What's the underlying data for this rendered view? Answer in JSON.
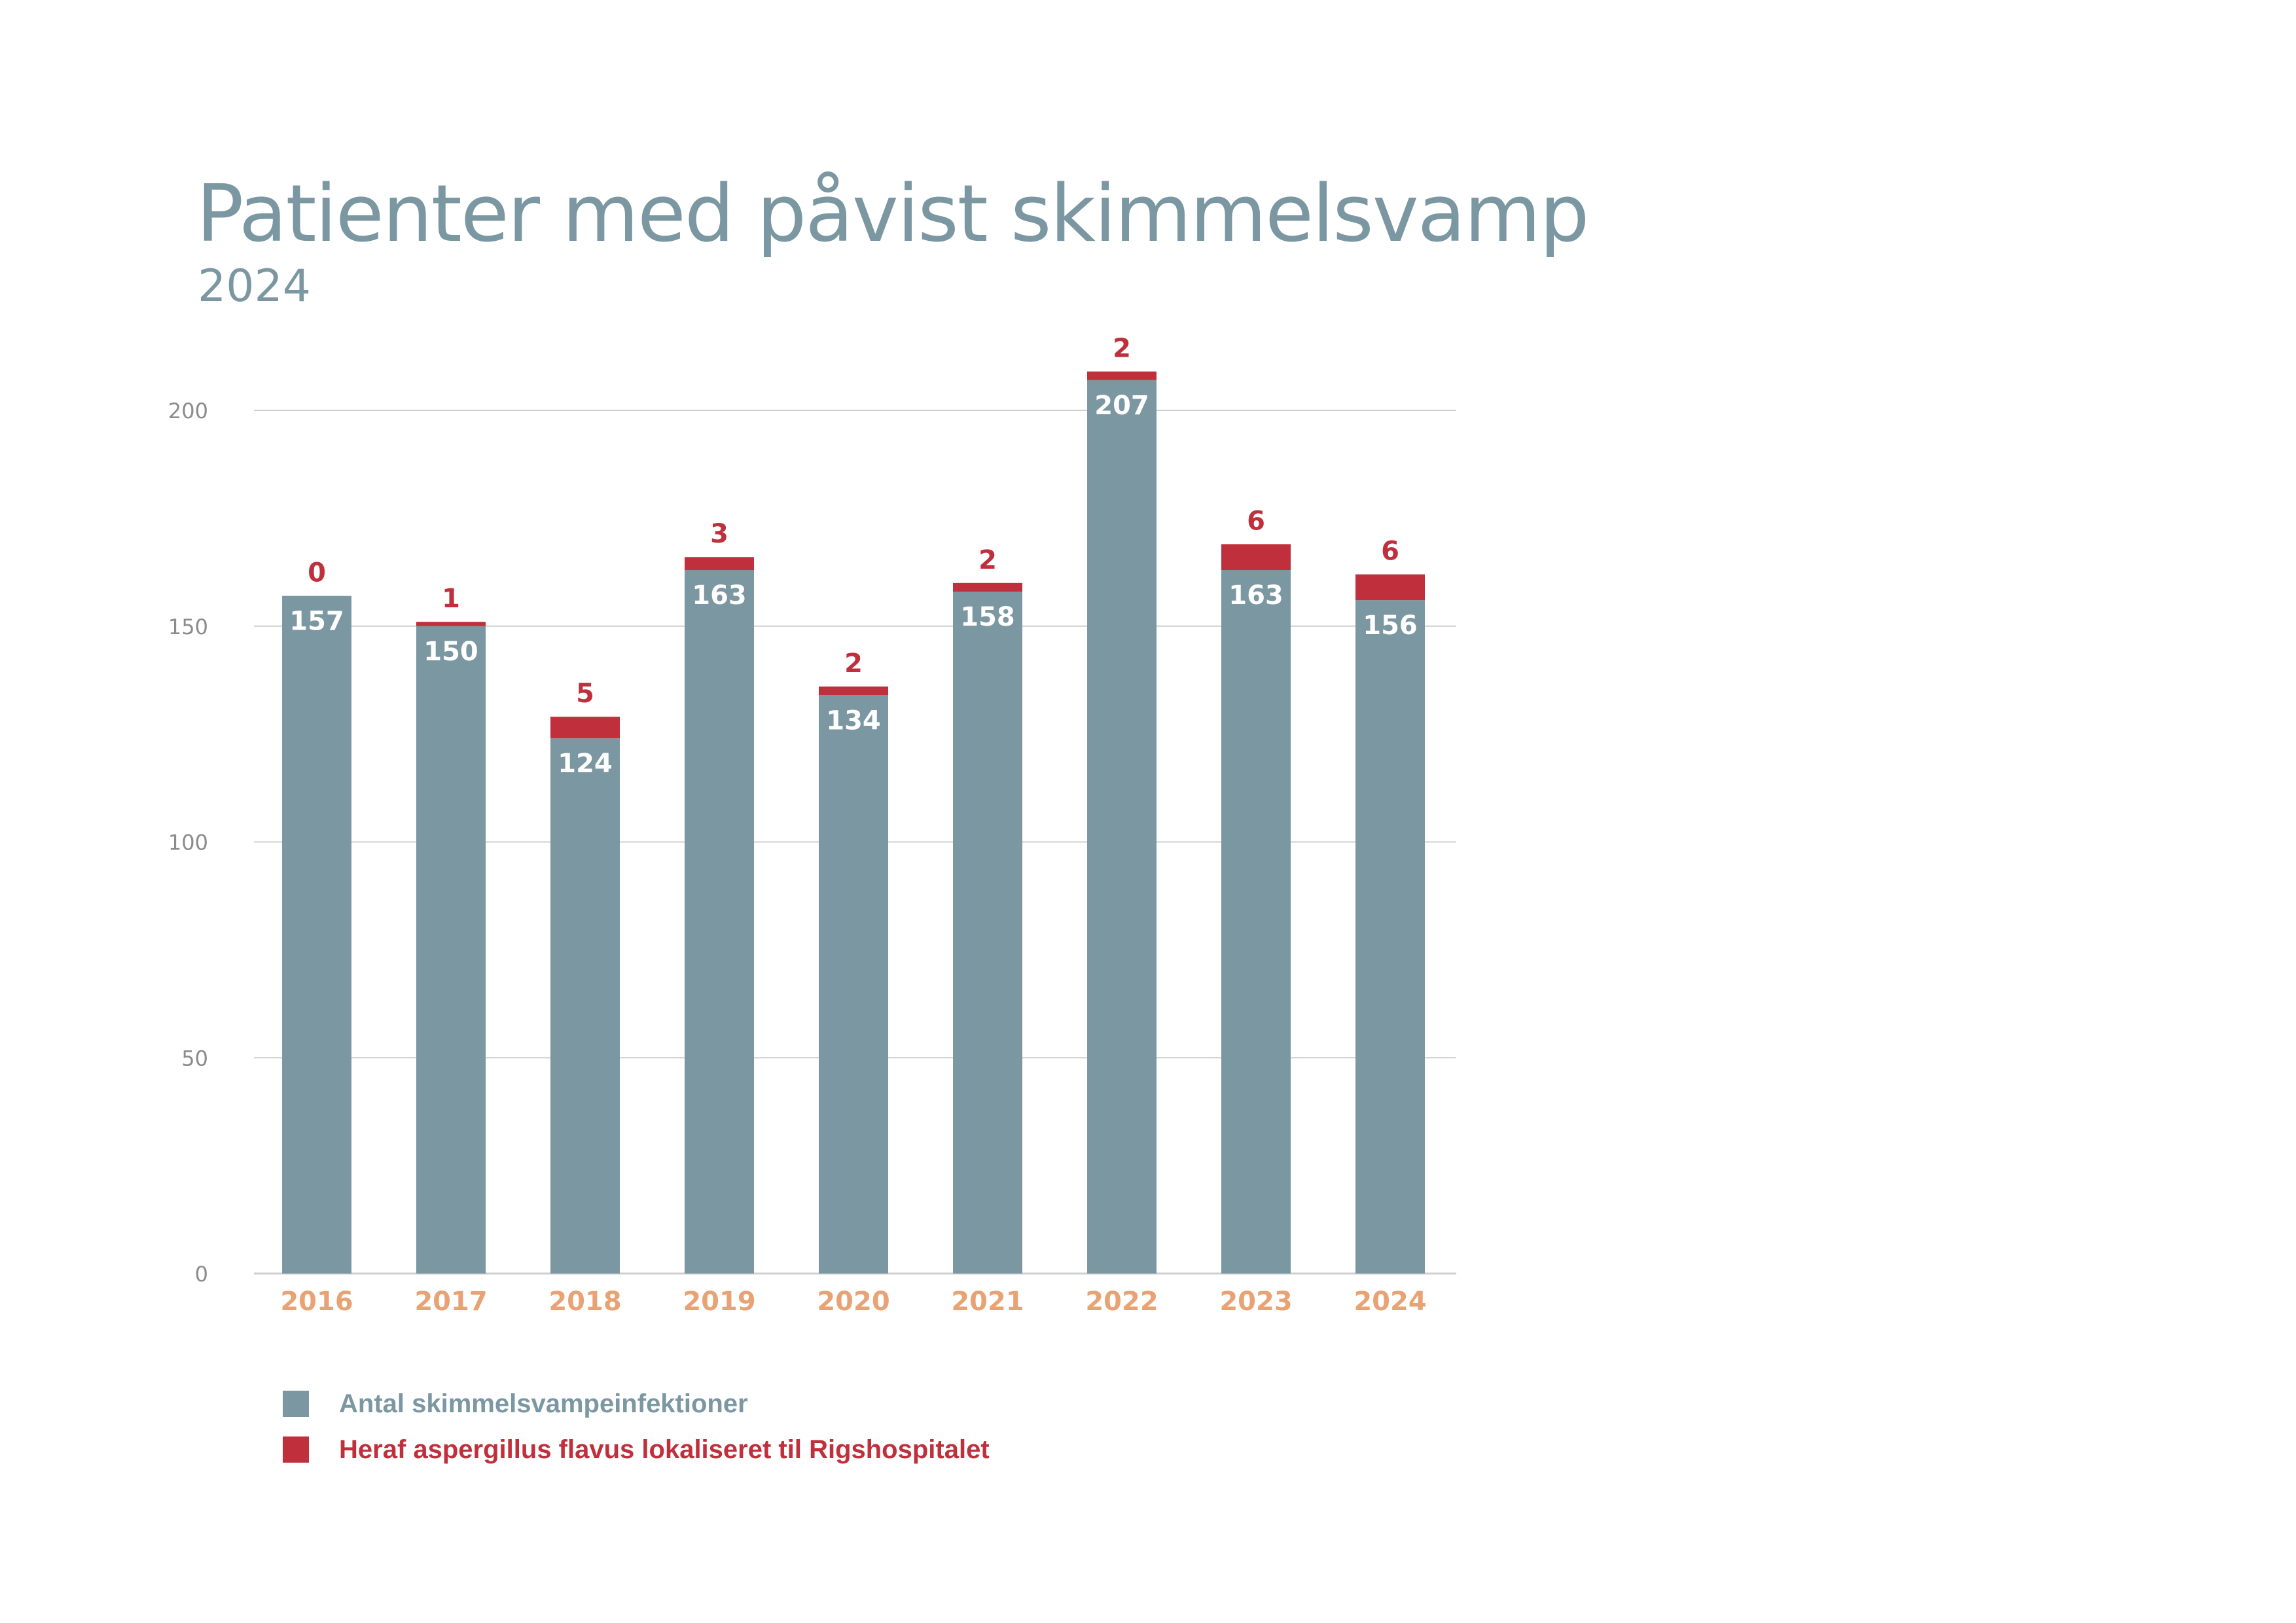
{
  "chart_data": {
    "type": "bar",
    "stacked": true,
    "title": "Patienter med påvist skimmelsvamp",
    "subtitle": "2024",
    "xlabel": "",
    "ylabel": "",
    "ylim": [
      0,
      200
    ],
    "yticks": [
      0,
      50,
      100,
      150,
      200
    ],
    "grid": true,
    "legend_position": "bottom-left",
    "categories": [
      "2016",
      "2017",
      "2018",
      "2019",
      "2020",
      "2021",
      "2022",
      "2023",
      "2024"
    ],
    "series": [
      {
        "name": "Antal skimmelsvampeinfektioner",
        "color": "#7b97a2",
        "values": [
          157,
          150,
          124,
          163,
          134,
          158,
          207,
          163,
          156
        ]
      },
      {
        "name": "Heraf aspergillus flavus lokaliseret til Rigshospitalet",
        "color": "#c0303c",
        "values": [
          0,
          1,
          5,
          3,
          2,
          2,
          2,
          6,
          6
        ]
      }
    ]
  },
  "colors": {
    "title": "#7b97a2",
    "category_label": "#e8a274",
    "tick_label": "#8c8c8c",
    "gridline": "#cfcfcf",
    "bar_value_label": "#ffffff"
  }
}
